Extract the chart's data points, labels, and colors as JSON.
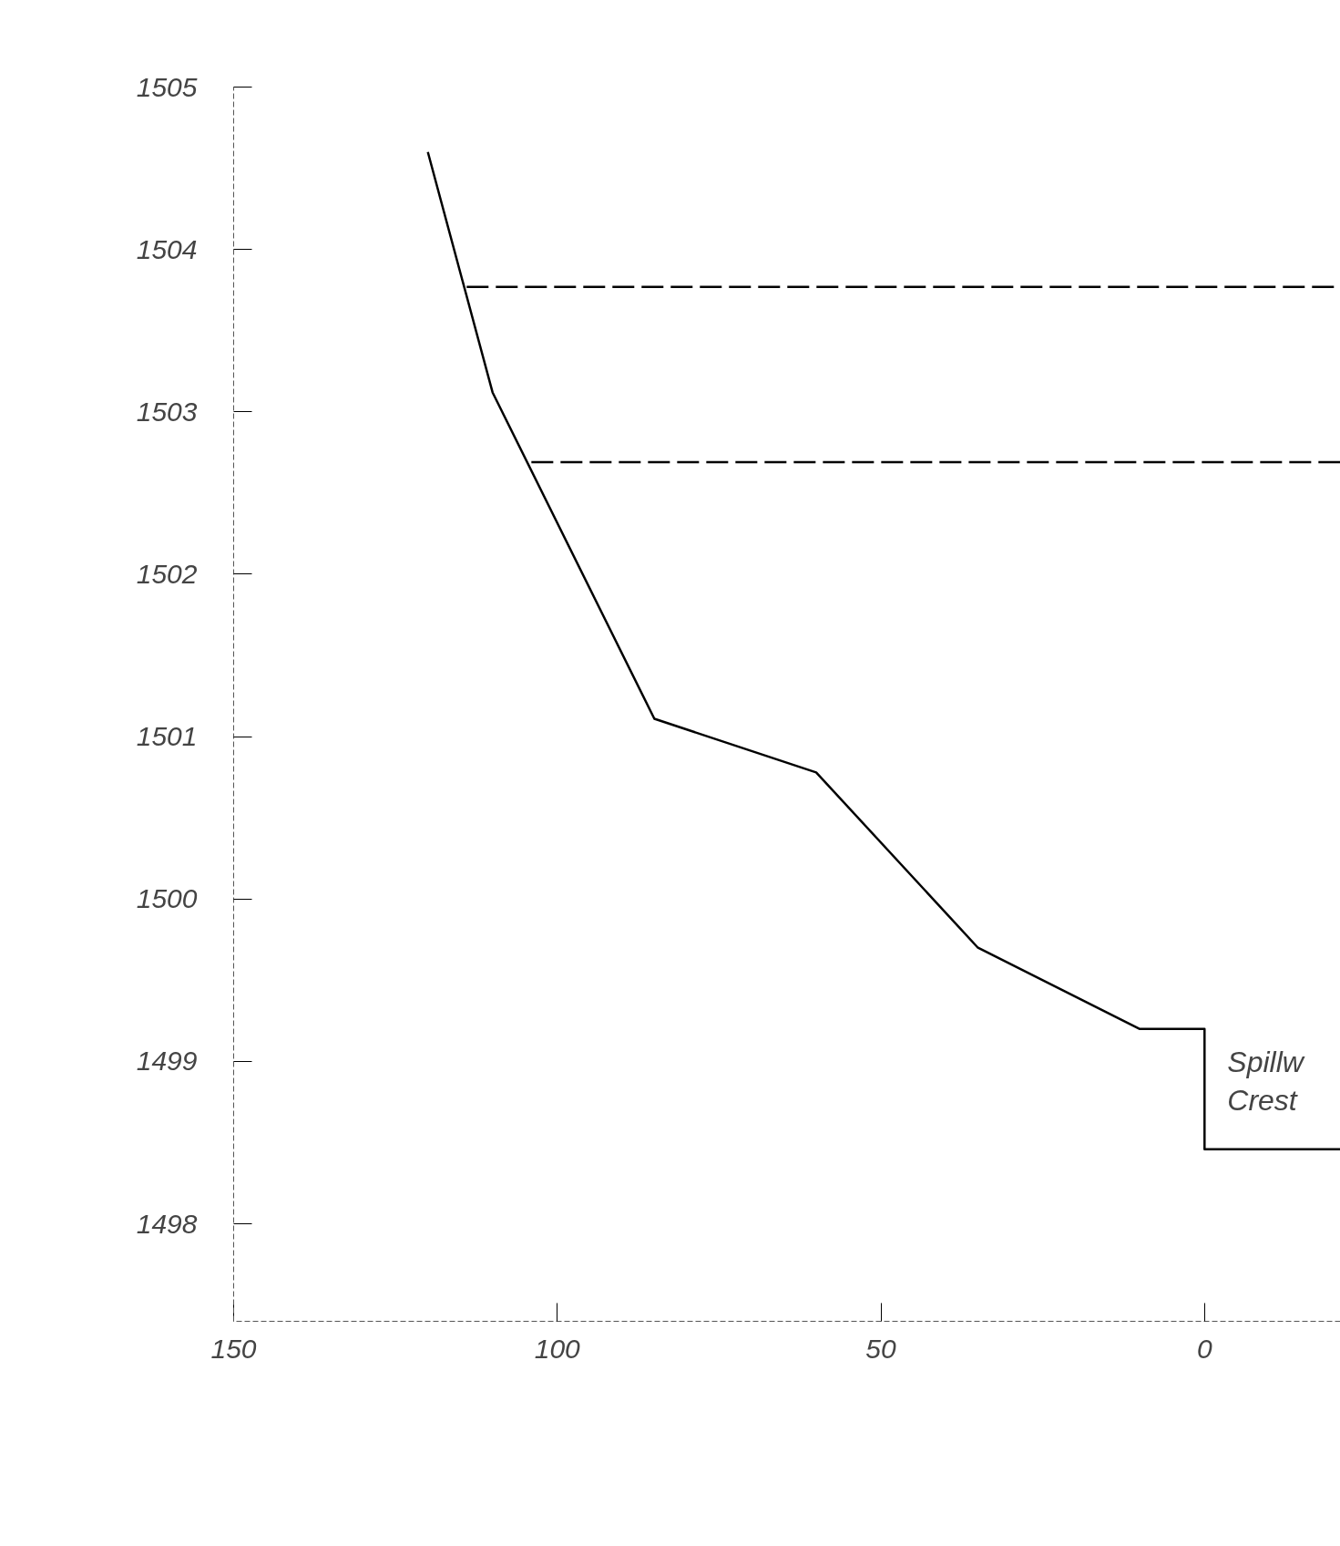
{
  "chart_data": {
    "type": "line",
    "xlim": [
      150,
      -21
    ],
    "ylim": [
      1497.4,
      1505
    ],
    "xticks": [
      150,
      100,
      50,
      0
    ],
    "yticks": [
      1498,
      1499,
      1500,
      1501,
      1502,
      1503,
      1504,
      1505
    ],
    "grid": false,
    "series": [
      {
        "color": "#000000",
        "x": [
          120,
          110,
          85,
          60,
          35,
          10,
          0,
          0,
          -21
        ],
        "values": [
          1504.6,
          1503.12,
          1501.11,
          1500.78,
          1499.7,
          1499.2,
          1499.2,
          1498.46,
          1498.46
        ],
        "line_style": "solid"
      },
      {
        "color": "#000000",
        "x": [
          114,
          -21
        ],
        "values": [
          1503.77,
          1503.77
        ],
        "line_style": "dashed"
      },
      {
        "color": "#000000",
        "x": [
          104,
          -21
        ],
        "values": [
          1502.69,
          1502.69
        ],
        "line_style": "dashed"
      }
    ],
    "annotations": [
      "Spillw",
      "Crest"
    ]
  }
}
